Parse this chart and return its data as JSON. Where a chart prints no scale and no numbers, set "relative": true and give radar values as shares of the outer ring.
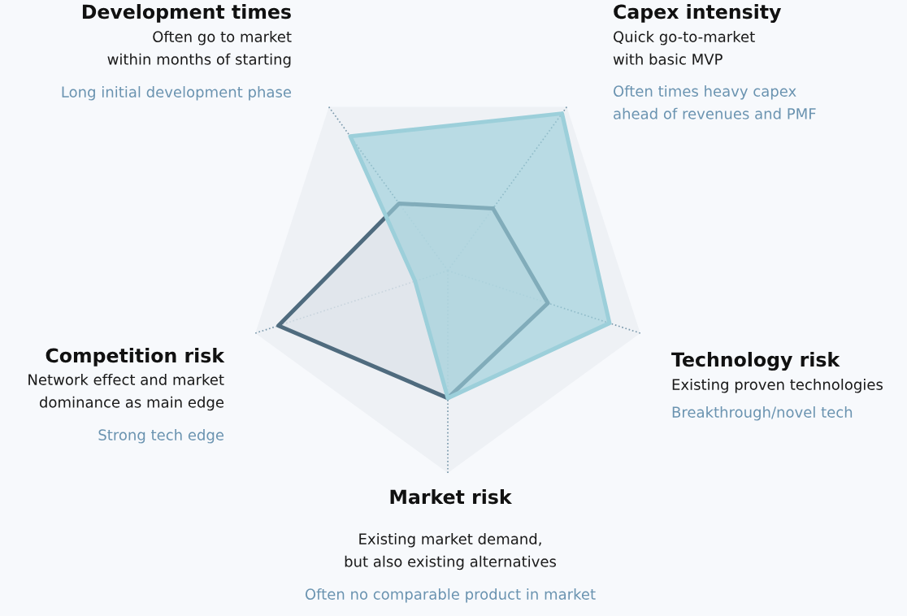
{
  "chart_data": {
    "type": "radar",
    "relative": true,
    "grid": true,
    "categories": [
      "Capex intensity",
      "Technology risk",
      "Market risk",
      "Competition risk",
      "Development times"
    ],
    "series": [
      {
        "color": "#4f6b7e",
        "values": [
          0.38,
          0.52,
          0.63,
          0.88,
          0.41
        ]
      },
      {
        "color": "#9ccfda",
        "values": [
          0.96,
          0.84,
          0.63,
          0.17,
          0.82
        ]
      }
    ],
    "annotations": [
      "Quick go-to-market\nwith basic MVP",
      "Often times heavy capex\nahead of revenues and PMF",
      "Existing proven technologies",
      "Breakthrough/novel tech",
      "Existing market demand,\nbut also existing alternatives",
      "Often no comparable product in market",
      "Network effect and market\ndominance as main edge",
      "Strong tech edge",
      "Often go to market\nwithin months of starting",
      "Long initial development phase"
    ]
  }
}
